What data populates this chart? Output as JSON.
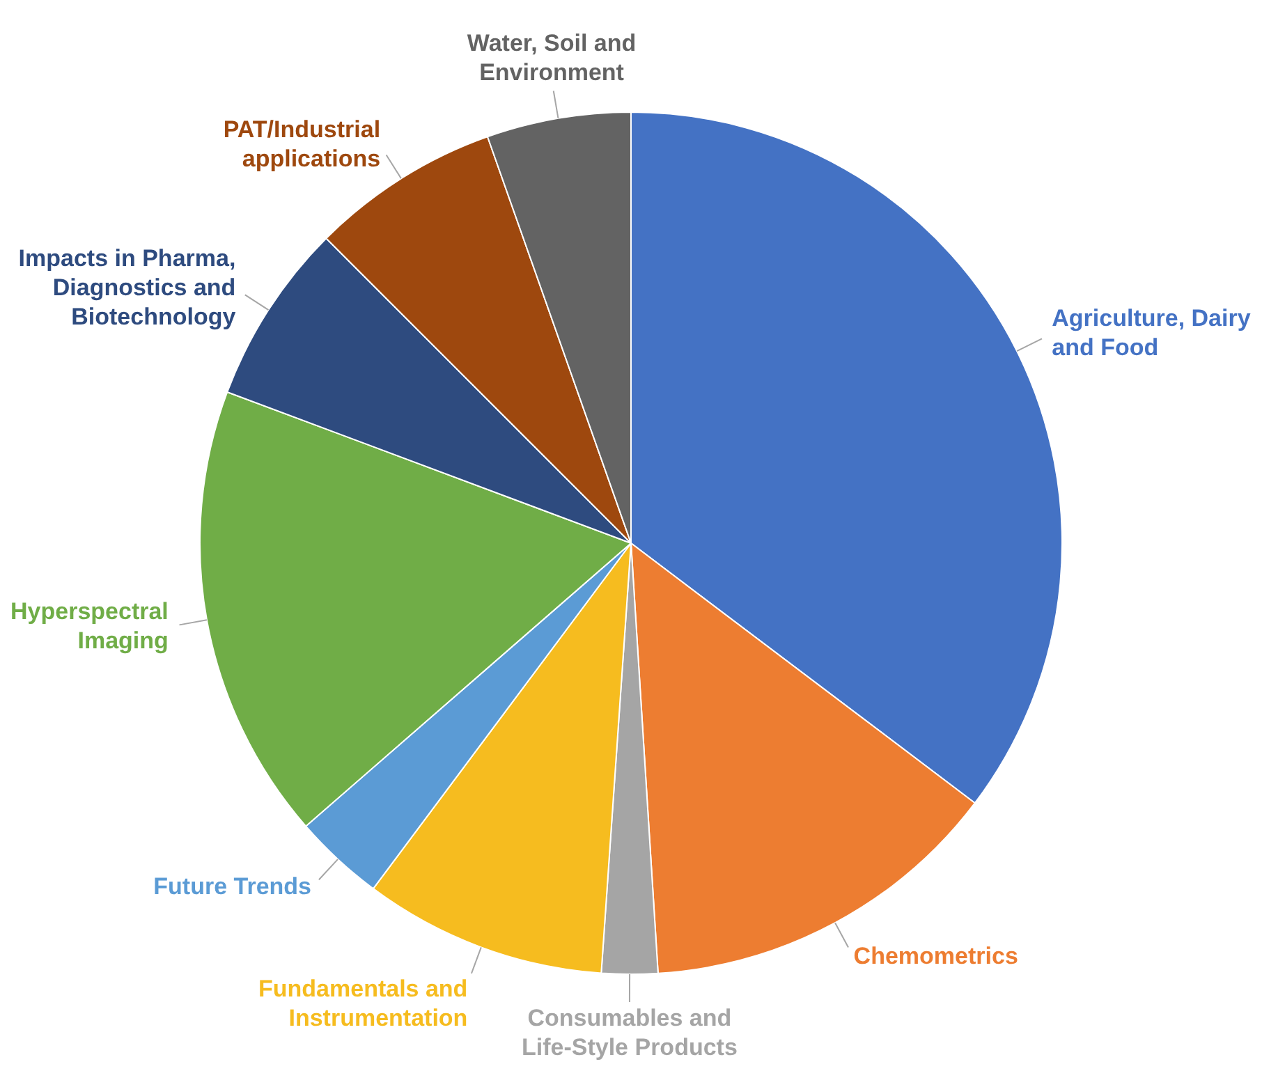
{
  "chart_data": {
    "type": "pie",
    "categories": [
      "Agriculture, Dairy and Food",
      "Chemometrics",
      "Consumables and Life-Style Products",
      "Fundamentals and Instrumentation",
      "Future Trends",
      "Hyperspectral Imaging",
      "Impacts in Pharma, Diagnostics and Biotechnology",
      "PAT/Industrial applications",
      "Water, Soil and Environment"
    ],
    "values": [
      35.3,
      13.7,
      2.1,
      9.1,
      3.4,
      17.1,
      6.8,
      7.1,
      5.4
    ],
    "colors": [
      "#4472c4",
      "#ed7d31",
      "#a5a5a5",
      "#f6bc1f",
      "#5b9bd5",
      "#70ad47",
      "#2e4b7f",
      "#9e480e",
      "#636363"
    ],
    "legend": false
  }
}
